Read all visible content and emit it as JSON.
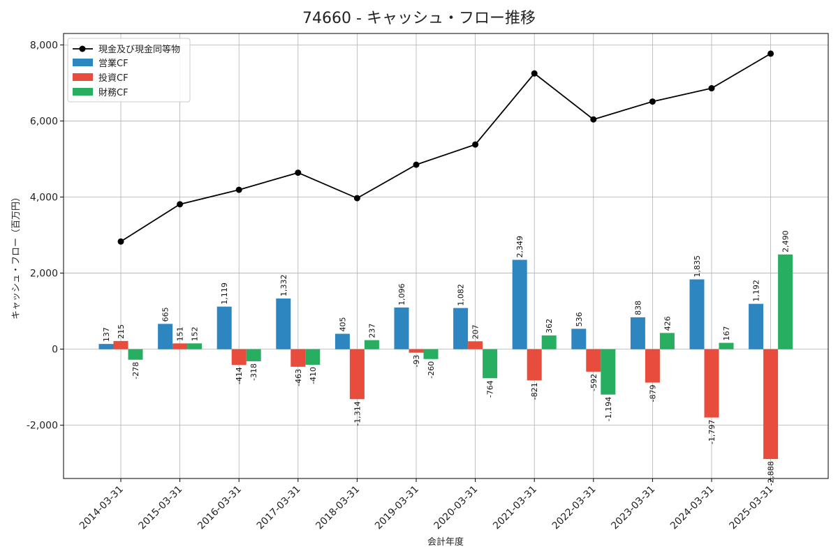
{
  "chart_data": {
    "type": "bar",
    "title": "74660 - キャッシュ・フロー推移",
    "xlabel": "会計年度",
    "ylabel": "キャッシュ・フロー（百万円）",
    "ylim": [
      -3400,
      8300
    ],
    "yticks": [
      -2000,
      0,
      2000,
      4000,
      6000,
      8000
    ],
    "ytick_labels": [
      "-2,000",
      "0",
      "2,000",
      "4,000",
      "6,000",
      "8,000"
    ],
    "grid": true,
    "legend_position": "top-left",
    "categories": [
      "2014-03-31",
      "2015-03-31",
      "2016-03-31",
      "2017-03-31",
      "2018-03-31",
      "2019-03-31",
      "2020-03-31",
      "2021-03-31",
      "2022-03-31",
      "2023-03-31",
      "2024-03-31",
      "2025-03-31"
    ],
    "line_series": {
      "name": "現金及び現金同等物",
      "color": "#000000",
      "values": [
        2830,
        3810,
        4190,
        4640,
        3970,
        4850,
        5380,
        7250,
        6040,
        6510,
        6860,
        7770
      ]
    },
    "series": [
      {
        "name": "営業CF",
        "color": "#2e86c1",
        "values": [
          137,
          665,
          1119,
          1332,
          405,
          1096,
          1082,
          2349,
          536,
          838,
          1835,
          1192
        ],
        "labels": [
          "137",
          "665",
          "1,119",
          "1,332",
          "405",
          "1,096",
          "1,082",
          "2,349",
          "536",
          "838",
          "1,835",
          "1,192"
        ]
      },
      {
        "name": "投資CF",
        "color": "#e74c3c",
        "values": [
          215,
          151,
          -414,
          -463,
          -1314,
          -93,
          207,
          -821,
          -592,
          -879,
          -1797,
          -2888
        ],
        "labels": [
          "215",
          "151",
          "-414",
          "-463",
          "-1,314",
          "-93",
          "207",
          "-821",
          "-592",
          "-879",
          "-1,797",
          "-2,888"
        ]
      },
      {
        "name": "財務CF",
        "color": "#27ae60",
        "values": [
          -278,
          152,
          -318,
          -410,
          237,
          -260,
          -764,
          362,
          -1194,
          426,
          167,
          2490
        ],
        "labels": [
          "-278",
          "152",
          "-318",
          "-410",
          "237",
          "-260",
          "-764",
          "362",
          "-1,194",
          "426",
          "167",
          "2,490"
        ]
      }
    ]
  }
}
